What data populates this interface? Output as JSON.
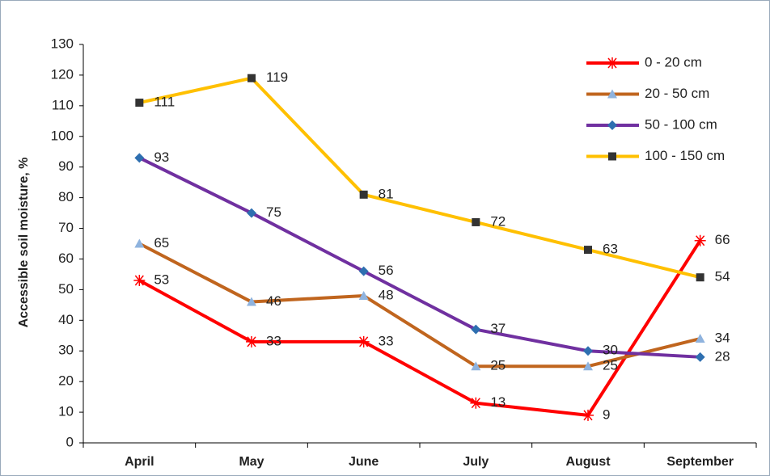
{
  "chart_data": {
    "type": "line",
    "y_label": "Accessible soil moisture, %",
    "categories": [
      "April",
      "May",
      "June",
      "July",
      "August",
      "September"
    ],
    "series": [
      {
        "name": "0 - 20 cm",
        "color": "#ff0000",
        "marker": "star",
        "marker_color": "#ff0000",
        "values": [
          53,
          33,
          33,
          13,
          9,
          66
        ]
      },
      {
        "name": "20 - 50 cm",
        "color": "#c0651e",
        "marker": "triangle",
        "marker_color": "#8fb3de",
        "values": [
          65,
          46,
          48,
          25,
          25,
          34
        ]
      },
      {
        "name": "50 - 100 cm",
        "color": "#7030a0",
        "marker": "diamond",
        "marker_color": "#2e6fb0",
        "values": [
          93,
          75,
          56,
          37,
          30,
          28
        ]
      },
      {
        "name": "100 - 150 cm",
        "color": "#ffc000",
        "marker": "square",
        "marker_color": "#333333",
        "values": [
          111,
          119,
          81,
          72,
          63,
          54
        ]
      }
    ],
    "ylim": [
      0,
      130
    ],
    "yticks": [
      0,
      10,
      20,
      30,
      40,
      50,
      60,
      70,
      80,
      90,
      100,
      110,
      120,
      130
    ],
    "grid": false,
    "legend": "top-right"
  }
}
